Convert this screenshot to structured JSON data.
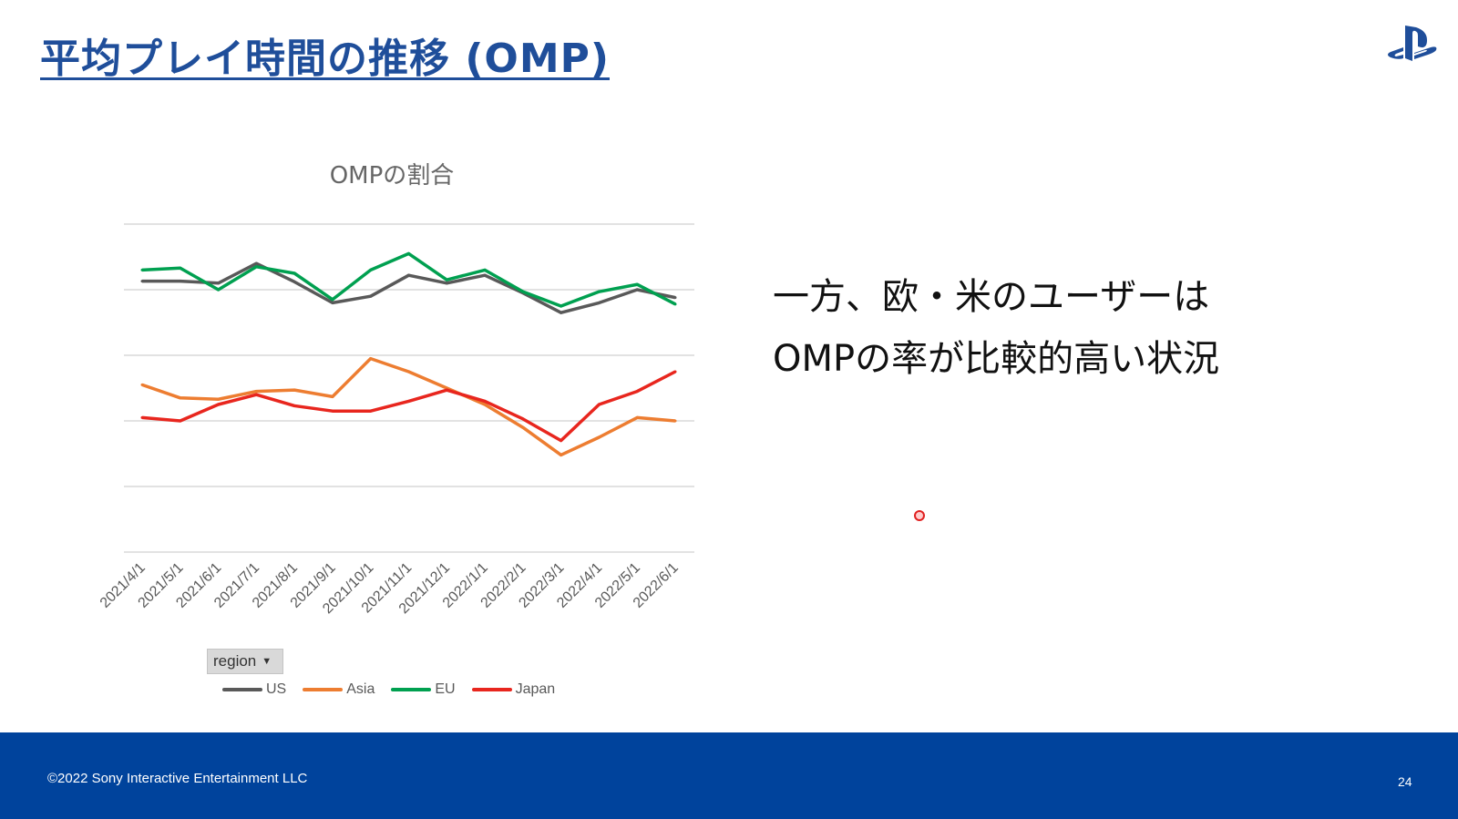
{
  "slide": {
    "title": "平均プレイ時間の推移 (OMP)",
    "text_lines": [
      "一方、欧・米のユーザーは",
      "OMPの率が比較的高い状況"
    ],
    "copyright": "©2022 Sony Interactive Entertainment LLC",
    "page_number": "24",
    "logo_icon": "playstation-logo-icon",
    "footer_color": "#00439c",
    "title_color": "#1f4e9a"
  },
  "filter": {
    "label": "region",
    "icon": "caret-down-icon"
  },
  "chart_data": {
    "type": "line",
    "title": "OMPの割合",
    "xlabel": "",
    "ylabel": "",
    "grid": true,
    "legend_position": "bottom",
    "ylim": [
      0,
      5
    ],
    "gridlines": [
      0,
      1,
      2,
      3,
      4,
      5
    ],
    "categories": [
      "2021/4/1",
      "2021/5/1",
      "2021/6/1",
      "2021/7/1",
      "2021/8/1",
      "2021/9/1",
      "2021/10/1",
      "2021/11/1",
      "2021/12/1",
      "2022/1/1",
      "2022/2/1",
      "2022/3/1",
      "2022/4/1",
      "2022/5/1",
      "2022/6/1"
    ],
    "series": [
      {
        "name": "US",
        "color": "#595959",
        "values": [
          4.13,
          4.13,
          4.1,
          4.4,
          4.12,
          3.8,
          3.9,
          4.22,
          4.1,
          4.22,
          3.95,
          3.65,
          3.8,
          4.0,
          3.88
        ]
      },
      {
        "name": "Asia",
        "color": "#ed7d31",
        "values": [
          2.55,
          2.35,
          2.33,
          2.45,
          2.47,
          2.37,
          2.95,
          2.75,
          2.5,
          2.25,
          1.9,
          1.48,
          1.75,
          2.05,
          2.0
        ]
      },
      {
        "name": "EU",
        "color": "#00a050",
        "values": [
          4.3,
          4.33,
          4.0,
          4.35,
          4.25,
          3.85,
          4.3,
          4.55,
          4.15,
          4.3,
          3.97,
          3.75,
          3.97,
          4.08,
          3.78
        ]
      },
      {
        "name": "Japan",
        "color": "#e8261e",
        "values": [
          2.05,
          2.0,
          2.25,
          2.4,
          2.23,
          2.15,
          2.15,
          2.3,
          2.47,
          2.3,
          2.03,
          1.7,
          2.25,
          2.45,
          2.75
        ]
      }
    ]
  }
}
